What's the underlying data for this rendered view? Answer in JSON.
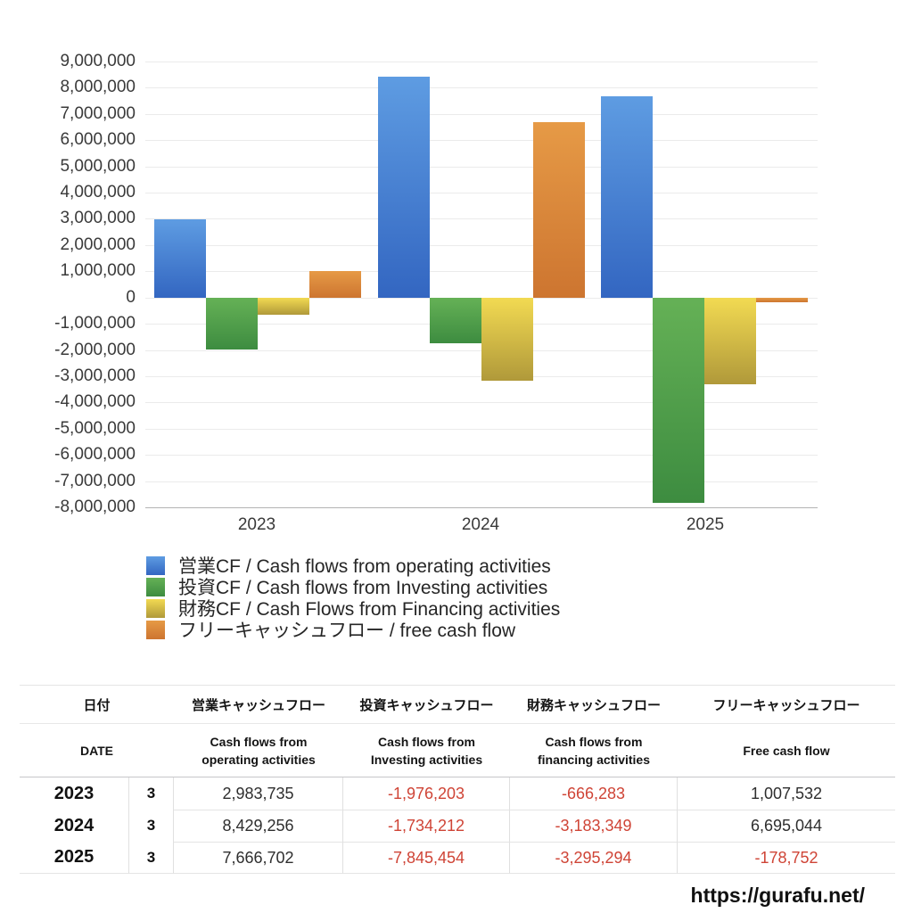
{
  "chart_data": {
    "type": "bar",
    "categories": [
      "2023",
      "2024",
      "2025"
    ],
    "series": [
      {
        "key": "operating",
        "name": "営業CF / Cash flows from operating activities",
        "values": [
          2983735,
          8429256,
          7666702
        ]
      },
      {
        "key": "investing",
        "name": "投資CF / Cash flows from Investing activities",
        "values": [
          -1976203,
          -1734212,
          -7845454
        ]
      },
      {
        "key": "financing",
        "name": "財務CF / Cash Flows from Financing activities",
        "values": [
          -666283,
          -3183349,
          -3295294
        ]
      },
      {
        "key": "free",
        "name": "フリーキャッシュフロー / free cash flow",
        "values": [
          1007532,
          6695044,
          -178752
        ]
      }
    ],
    "title": "",
    "xlabel": "",
    "ylabel": "",
    "ylim": [
      -8000000,
      9000000
    ],
    "ytick_step": 1000000,
    "grid": true,
    "legend_position": "bottom-left"
  },
  "colors": {
    "series": {
      "operating": {
        "top": "#5e9ce2",
        "bottom": "#3366c1"
      },
      "investing": {
        "top": "#65b156",
        "bottom": "#3d8c40"
      },
      "financing": {
        "top": "#f2da52",
        "bottom": "#b0993a"
      },
      "free": {
        "top": "#e69a46",
        "bottom": "#cd7530"
      }
    },
    "negative_text": "#cf4436",
    "gridline": "#ebebeb",
    "baseline": "#b3b3b3",
    "axis_text": "#3a3a3a"
  },
  "table": {
    "header_jp": [
      "日付",
      "営業キャッシュフロー",
      "投資キャッシュフロー",
      "財務キャッシュフロー",
      "フリーキャッシュフロー"
    ],
    "header_en": [
      "DATE",
      "Cash flows from\noperating activities",
      "Cash flows from\nInvesting activities",
      "Cash flows from\nfinancing activities",
      "Free cash flow"
    ],
    "rows": [
      {
        "year": "2023",
        "month": "3",
        "values": [
          "2,983,735",
          "-1,976,203",
          "-666,283",
          "1,007,532"
        ]
      },
      {
        "year": "2024",
        "month": "3",
        "values": [
          "8,429,256",
          "-1,734,212",
          "-3,183,349",
          "6,695,044"
        ]
      },
      {
        "year": "2025",
        "month": "3",
        "values": [
          "7,666,702",
          "-7,845,454",
          "-3,295,294",
          "-178,752"
        ]
      }
    ]
  },
  "footer": {
    "url": "https://gurafu.net/"
  }
}
